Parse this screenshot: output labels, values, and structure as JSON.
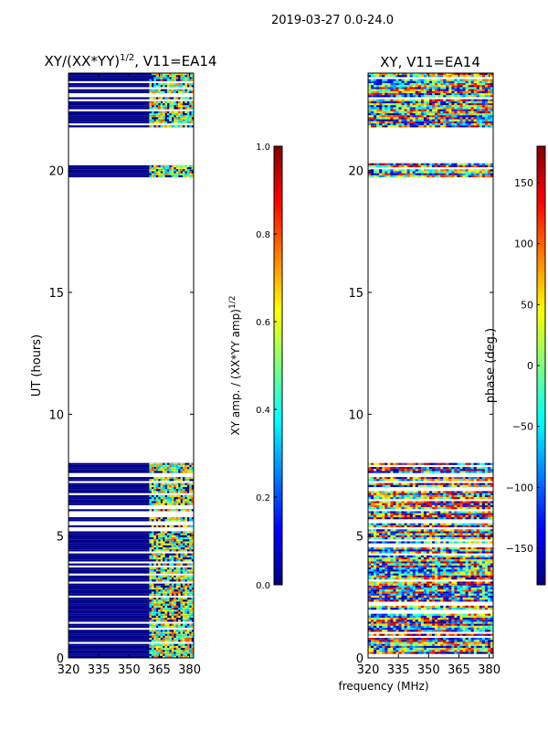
{
  "suptitle": "2019-03-27 0.0-24.0",
  "xlabel": "frequency (MHz)",
  "colors": {
    "masked_fill": "#00008b",
    "jet": [
      "#00007f",
      "#0000ff",
      "#007fff",
      "#00ffff",
      "#7fff7f",
      "#ffff00",
      "#ff7f00",
      "#ff0000",
      "#7f0000"
    ]
  },
  "chart_data": [
    {
      "type": "heatmap",
      "title": "XY/(XX*YY)",
      "title_sup": "1/2",
      "title_tail": ", V11=EA14",
      "ylabel": "UT (hours)",
      "xlim": [
        320,
        382
      ],
      "ylim": [
        0,
        24
      ],
      "xticks": [
        "320",
        "335",
        "350",
        "365",
        "380"
      ],
      "xtick_values": [
        320,
        335,
        350,
        365,
        380
      ],
      "yticks": [
        "0",
        "5",
        "10",
        "15",
        "20"
      ],
      "ytick_values": [
        0,
        5,
        10,
        15,
        20
      ],
      "data_ranges_hours": [
        [
          0.0,
          8.0
        ],
        [
          19.8,
          20.3
        ],
        [
          21.8,
          24.0
        ]
      ],
      "active_freq_range_mhz": [
        360,
        382
      ],
      "colorbar": {
        "label": "XY amp. / (XX*YY amp)",
        "label_sup": "1/2",
        "range": [
          0.0,
          1.0
        ],
        "ticks": [
          "0.0",
          "0.2",
          "0.4",
          "0.6",
          "0.8",
          "1.0"
        ],
        "tick_values": [
          0.0,
          0.2,
          0.4,
          0.6,
          0.8,
          1.0
        ]
      }
    },
    {
      "type": "heatmap",
      "title": "XY, V11=EA14",
      "xlim": [
        320,
        382
      ],
      "ylim": [
        0,
        24
      ],
      "xticks": [
        "320",
        "335",
        "350",
        "365",
        "380"
      ],
      "xtick_values": [
        320,
        335,
        350,
        365,
        380
      ],
      "yticks": [
        "0",
        "5",
        "10",
        "15",
        "20"
      ],
      "ytick_values": [
        0,
        5,
        10,
        15,
        20
      ],
      "data_ranges_hours": [
        [
          0.0,
          8.0
        ],
        [
          19.8,
          20.3
        ],
        [
          21.8,
          24.0
        ]
      ],
      "colorbar": {
        "label": "phase (deg.)",
        "range": [
          -180,
          180
        ],
        "ticks": [
          "150",
          "100",
          "50",
          "0",
          "−50",
          "−100",
          "−150"
        ],
        "tick_values": [
          150,
          100,
          50,
          0,
          -50,
          -100,
          -150
        ]
      }
    }
  ]
}
